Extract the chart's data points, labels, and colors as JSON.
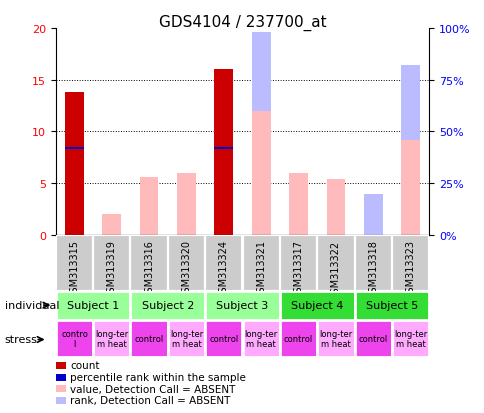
{
  "title": "GDS4104 / 237700_at",
  "samples": [
    "GSM313315",
    "GSM313319",
    "GSM313316",
    "GSM313320",
    "GSM313324",
    "GSM313321",
    "GSM313317",
    "GSM313322",
    "GSM313318",
    "GSM313323"
  ],
  "count": [
    13.8,
    0,
    0,
    0,
    16.0,
    0,
    0,
    0,
    0,
    0
  ],
  "percentile_rank_pct": [
    42,
    0,
    0,
    0,
    42,
    0,
    0,
    0,
    0,
    0
  ],
  "value_absent_pct": [
    0,
    10,
    28,
    30,
    0,
    60,
    30,
    27,
    0,
    46
  ],
  "rank_absent_pct": [
    0,
    0,
    0,
    0,
    0,
    38,
    0,
    0,
    20,
    36
  ],
  "subjects": [
    {
      "label": "Subject 1",
      "start": 0,
      "end": 2,
      "color": "#99ff99"
    },
    {
      "label": "Subject 2",
      "start": 2,
      "end": 4,
      "color": "#99ff99"
    },
    {
      "label": "Subject 3",
      "start": 4,
      "end": 6,
      "color": "#99ff99"
    },
    {
      "label": "Subject 4",
      "start": 6,
      "end": 8,
      "color": "#33dd33"
    },
    {
      "label": "Subject 5",
      "start": 8,
      "end": 10,
      "color": "#33dd33"
    }
  ],
  "stress": [
    {
      "label": "contro\nl",
      "start": 0,
      "end": 1,
      "color": "#ee44ee"
    },
    {
      "label": "long-ter\nm heat",
      "start": 1,
      "end": 2,
      "color": "#ffaaff"
    },
    {
      "label": "control",
      "start": 2,
      "end": 3,
      "color": "#ee44ee"
    },
    {
      "label": "long-ter\nm heat",
      "start": 3,
      "end": 4,
      "color": "#ffaaff"
    },
    {
      "label": "control",
      "start": 4,
      "end": 5,
      "color": "#ee44ee"
    },
    {
      "label": "long-ter\nm heat",
      "start": 5,
      "end": 6,
      "color": "#ffaaff"
    },
    {
      "label": "control",
      "start": 6,
      "end": 7,
      "color": "#ee44ee"
    },
    {
      "label": "long-ter\nm heat",
      "start": 7,
      "end": 8,
      "color": "#ffaaff"
    },
    {
      "label": "control",
      "start": 8,
      "end": 9,
      "color": "#ee44ee"
    },
    {
      "label": "long-ter\nm heat",
      "start": 9,
      "end": 10,
      "color": "#ffaaff"
    }
  ],
  "ylim_left": [
    0,
    20
  ],
  "ylim_right": [
    0,
    100
  ],
  "yticks_left": [
    0,
    5,
    10,
    15,
    20
  ],
  "yticks_right": [
    0,
    25,
    50,
    75,
    100
  ],
  "ytick_labels_left": [
    "0",
    "5",
    "10",
    "15",
    "20"
  ],
  "ytick_labels_right": [
    "0%",
    "25%",
    "50%",
    "75%",
    "100%"
  ],
  "bar_width": 0.5,
  "color_count": "#cc0000",
  "color_rank": "#0000cc",
  "color_value_absent": "#ffbbbb",
  "color_rank_absent": "#bbbbff",
  "color_sample_bg": "#cccccc",
  "legend_items": [
    {
      "color": "#cc0000",
      "label": "count"
    },
    {
      "color": "#0000cc",
      "label": "percentile rank within the sample"
    },
    {
      "color": "#ffbbbb",
      "label": "value, Detection Call = ABSENT"
    },
    {
      "color": "#bbbbff",
      "label": "rank, Detection Call = ABSENT"
    }
  ]
}
